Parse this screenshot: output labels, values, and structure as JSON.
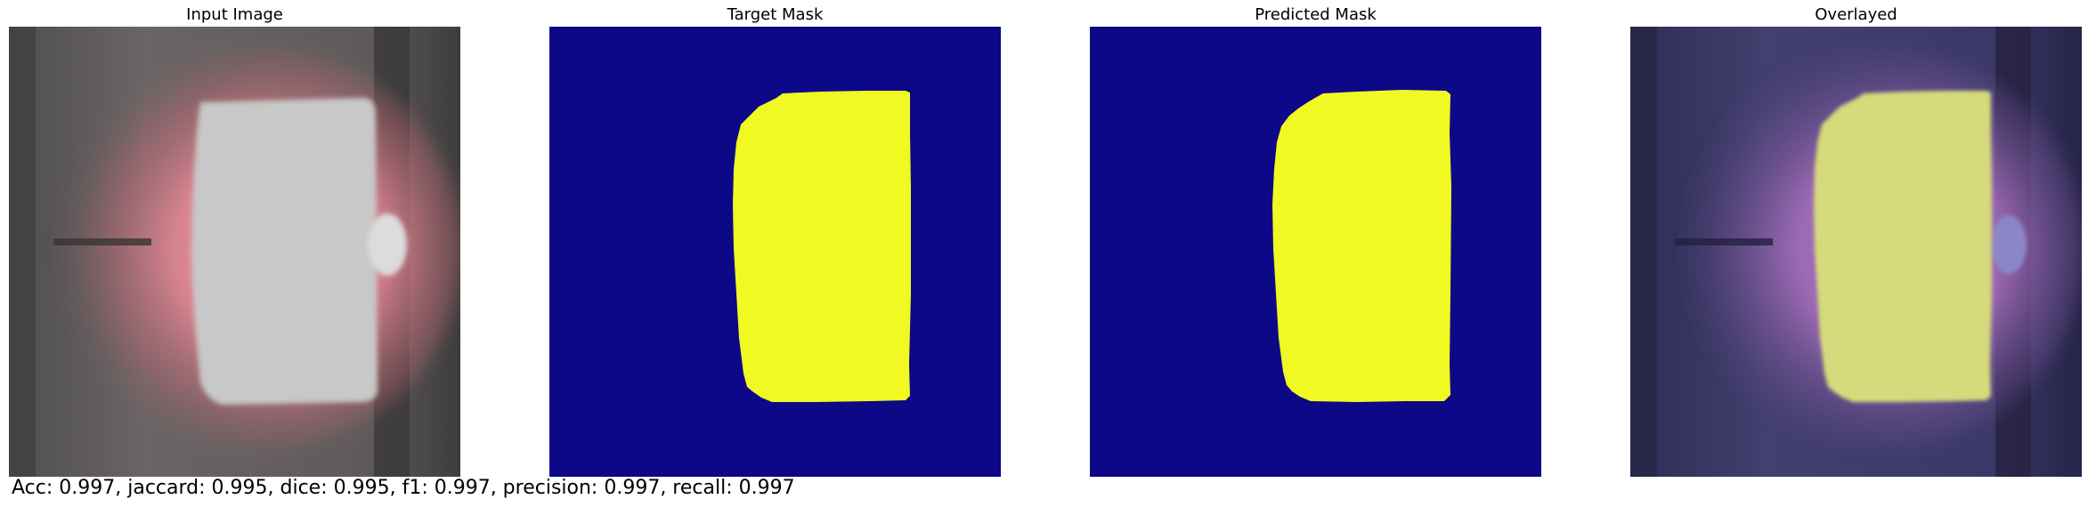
{
  "panels": [
    {
      "id": "input",
      "title": "Input Image"
    },
    {
      "id": "target",
      "title": "Target Mask"
    },
    {
      "id": "predicted",
      "title": "Predicted Mask"
    },
    {
      "id": "overlay",
      "title": "Overlayed"
    }
  ],
  "colors": {
    "mask_background": "#0d0887",
    "mask_foreground": "#f0f921",
    "input_background": "#5a5757",
    "input_glow": "#e07a8a",
    "input_object": "#c6c7c6",
    "overlay_background": "#3d3a66",
    "overlay_object": "#d6da7c",
    "overlay_glow": "#a76ab8"
  },
  "metrics_text": "Acc: 0.997, jaccard: 0.995, dice: 0.995, f1: 0.997, precision: 0.997, recall: 0.997"
}
